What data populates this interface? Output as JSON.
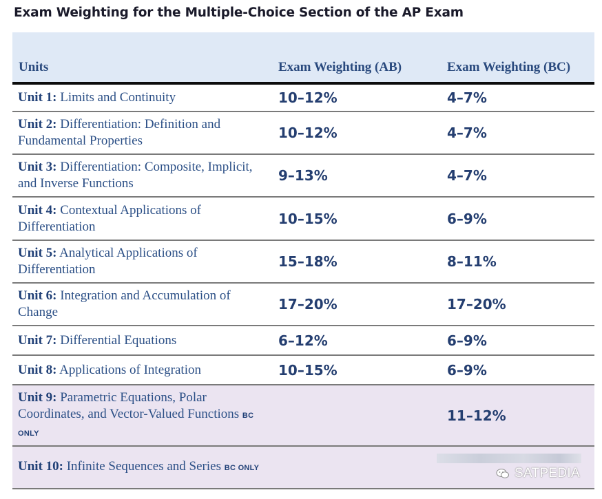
{
  "title": "Exam Weighting for the Multiple-Choice Section of the AP Exam",
  "table": {
    "headers": [
      "Units",
      "Exam Weighting (AB)",
      "Exam Weighting (BC)"
    ],
    "rows": [
      {
        "unit_no": "Unit 1:",
        "unit_name": " Limits and Continuity",
        "tag": "",
        "ab": "10–12%",
        "bc": "4–7%"
      },
      {
        "unit_no": "Unit 2:",
        "unit_name": " Differentiation: Definition and Fundamental Properties",
        "tag": "",
        "ab": "10–12%",
        "bc": "4–7%"
      },
      {
        "unit_no": "Unit 3:",
        "unit_name": " Differentiation: Composite, Implicit, and Inverse Functions",
        "tag": "",
        "ab": "9–13%",
        "bc": "4–7%"
      },
      {
        "unit_no": "Unit 4:",
        "unit_name": " Contextual Applications of Differentiation",
        "tag": "",
        "ab": "10–15%",
        "bc": "6–9%"
      },
      {
        "unit_no": "Unit 5:",
        "unit_name": " Analytical Applications of Differentiation",
        "tag": "",
        "ab": "15–18%",
        "bc": "8–11%"
      },
      {
        "unit_no": "Unit 6:",
        "unit_name": " Integration and Accumulation of Change",
        "tag": "",
        "ab": "17–20%",
        "bc": "17–20%"
      },
      {
        "unit_no": "Unit 7:",
        "unit_name": " Differential Equations",
        "tag": "",
        "ab": "6–12%",
        "bc": "6–9%"
      },
      {
        "unit_no": "Unit 8:",
        "unit_name": " Applications of Integration",
        "tag": "",
        "ab": "10–15%",
        "bc": "6–9%"
      },
      {
        "unit_no": "Unit 9:",
        "unit_name": " Parametric Equations, Polar Coordinates, and Vector-Valued Functions",
        "tag": "BC ONLY",
        "ab": "",
        "bc": "11–12%"
      },
      {
        "unit_no": "Unit 10:",
        "unit_name": " Infinite Sequences and Series",
        "tag": "BC ONLY",
        "ab": "",
        "bc": ""
      }
    ]
  },
  "watermark": {
    "text": "SATPEDIA",
    "icon": "wechat-icon"
  },
  "colors": {
    "header_bg": "#dfe9f6",
    "bc_only_bg": "#ebe4f1",
    "text_blue": "#2b4f86"
  }
}
